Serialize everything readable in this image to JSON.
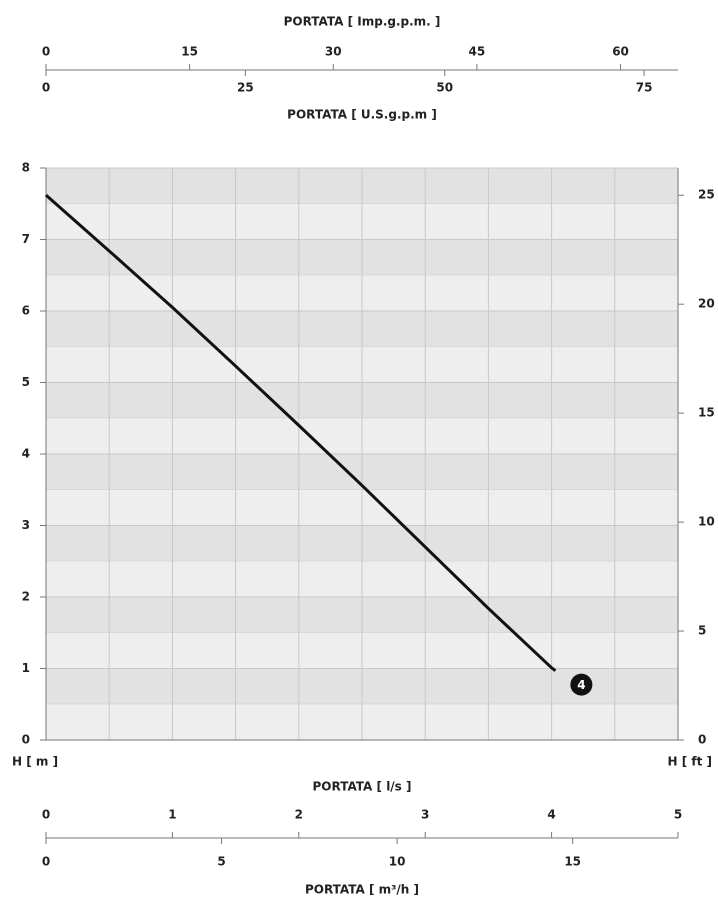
{
  "chart_data": {
    "type": "line",
    "x": [
      0,
      0.5,
      1,
      1.5,
      2,
      2.5,
      3,
      3.5,
      4,
      4.03
    ],
    "series": [
      {
        "name": "4",
        "color": "#111111",
        "values": [
          7.62,
          6.84,
          6.05,
          5.23,
          4.4,
          3.56,
          2.7,
          1.84,
          1.01,
          0.97
        ]
      }
    ],
    "xlabel": "PORTATA [ l/s ]",
    "xlim": [
      0,
      5
    ],
    "xticks": [
      0,
      1,
      2,
      3,
      4,
      5
    ],
    "ylabel": "H [ m ]",
    "ylim": [
      0,
      8
    ],
    "yticks": [
      0,
      1,
      2,
      3,
      4,
      5,
      6,
      7,
      8
    ],
    "y2label": "H [ ft ]",
    "y2lim": [
      0,
      26.25
    ],
    "y2ticks": [
      0,
      5,
      10,
      15,
      20,
      25
    ],
    "grid": true,
    "extra_x_axes": [
      {
        "label": "PORTATA [ m³/h ]",
        "position": "bottom",
        "lim": [
          0,
          18
        ],
        "ticks": [
          0,
          5,
          10,
          15
        ]
      },
      {
        "label": "PORTATA [ Imp.g.p.m. ]",
        "position": "top",
        "lim": [
          0,
          66
        ],
        "ticks": [
          0,
          15,
          30,
          45,
          60
        ]
      },
      {
        "label": "PORTATA [ U.S.g.p.m ]",
        "position": "top-below",
        "lim": [
          0,
          79.25
        ],
        "ticks": [
          0,
          25,
          50,
          75
        ]
      }
    ]
  }
}
